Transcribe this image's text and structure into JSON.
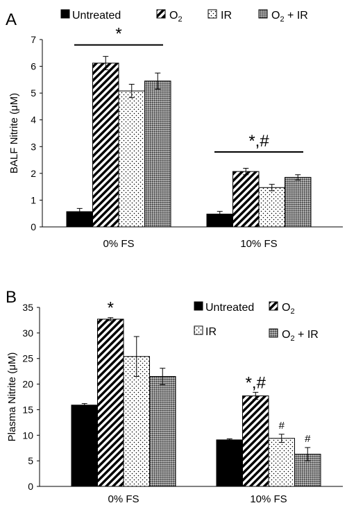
{
  "chart_data": [
    {
      "type": "bar",
      "panel_label": "A",
      "ylabel": "BALF Nitrite (μM)",
      "categories": [
        "0% FS",
        "10% FS"
      ],
      "ylim": [
        0,
        7
      ],
      "yticks": [
        "0",
        "1",
        "2",
        "3",
        "4",
        "5",
        "6",
        "7"
      ],
      "legend_position": "top",
      "series": [
        {
          "name": "Untreated",
          "pattern": "solid",
          "values": [
            0.57,
            0.48
          ],
          "errors": [
            0.12,
            0.1
          ]
        },
        {
          "name": "O2",
          "pattern": "diagonal",
          "values": [
            6.12,
            2.07
          ],
          "errors": [
            0.25,
            0.12
          ]
        },
        {
          "name": "IR",
          "pattern": "dots",
          "values": [
            5.08,
            1.47
          ],
          "errors": [
            0.25,
            0.12
          ]
        },
        {
          "name": "O2 + IR",
          "pattern": "dense",
          "values": [
            5.45,
            1.85
          ],
          "errors": [
            0.3,
            0.1
          ]
        }
      ],
      "annotations": [
        {
          "text": "*",
          "group": 0,
          "type": "bracket",
          "y": 6.8
        },
        {
          "text": "*,#",
          "group": 1,
          "type": "bracket",
          "y": 2.8
        }
      ]
    },
    {
      "type": "bar",
      "panel_label": "B",
      "ylabel": "Plasma Nitrite (μM)",
      "categories": [
        "0% FS",
        "10% FS"
      ],
      "ylim": [
        0,
        35
      ],
      "yticks": [
        "0",
        "5",
        "10",
        "15",
        "20",
        "25",
        "30",
        "35"
      ],
      "legend_position": "top-right",
      "series": [
        {
          "name": "Untreated",
          "pattern": "solid",
          "values": [
            15.9,
            9.1
          ],
          "errors": [
            0.3,
            0.2
          ]
        },
        {
          "name": "O2",
          "pattern": "diagonal",
          "values": [
            32.7,
            17.7
          ],
          "errors": [
            0.3,
            0.7
          ]
        },
        {
          "name": "IR",
          "pattern": "dots",
          "values": [
            25.4,
            9.4
          ],
          "errors": [
            3.9,
            0.8
          ]
        },
        {
          "name": "O2 + IR",
          "pattern": "dense",
          "values": [
            21.5,
            6.3
          ],
          "errors": [
            1.6,
            1.3
          ]
        }
      ],
      "annotations": [
        {
          "text": "*",
          "group": 0,
          "series": 1
        },
        {
          "text": "*,#",
          "group": 1,
          "series": 1
        },
        {
          "text": "#",
          "group": 1,
          "series": 2
        },
        {
          "text": "#",
          "group": 1,
          "series": 3
        }
      ]
    }
  ],
  "colors": {
    "bar_stroke": "#000000",
    "fill_solid": "#000000",
    "background": "#ffffff"
  }
}
